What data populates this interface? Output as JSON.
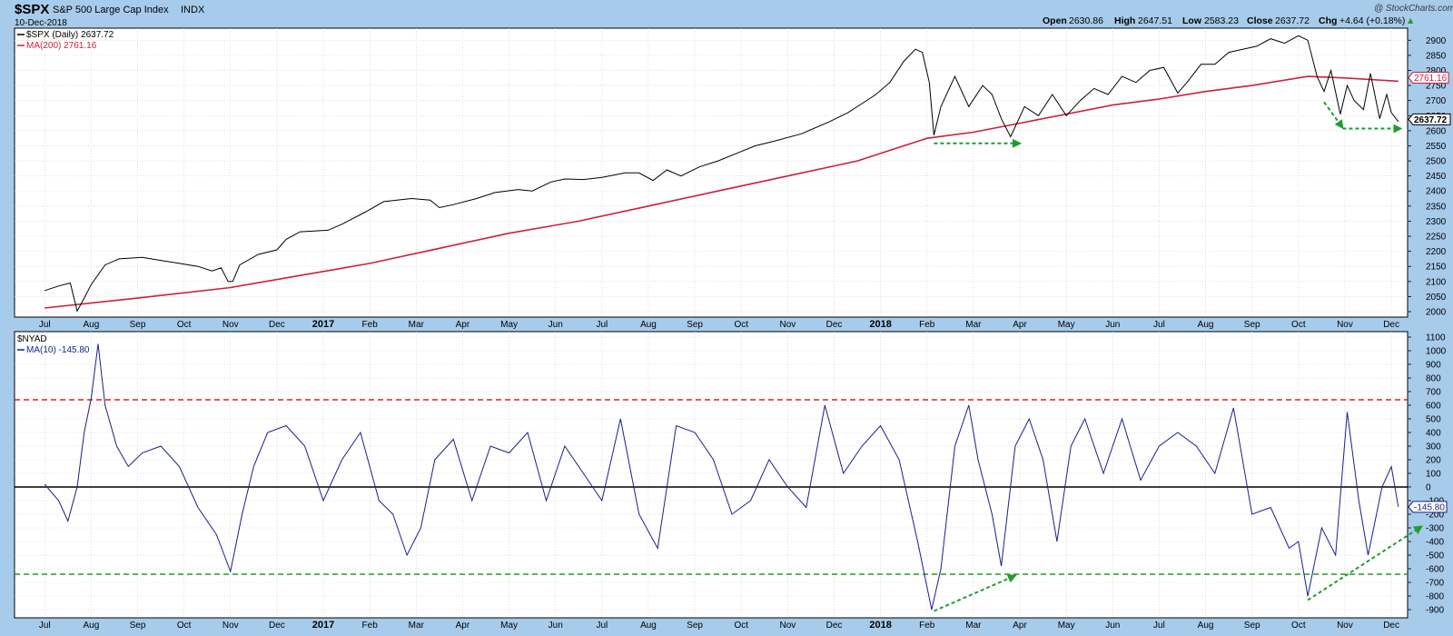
{
  "header": {
    "symbol": "$SPX",
    "name": "S&P 500 Large Cap Index",
    "exchange": "INDX",
    "date": "10-Dec-2018",
    "copyright": "@ StockCharts.com",
    "quote": {
      "open_label": "Open",
      "open": "2630.86",
      "high_label": "High",
      "high": "2647.51",
      "low_label": "Low",
      "low": "2583.23",
      "close_label": "Close",
      "close": "2637.72",
      "chg_label": "Chg",
      "chg": "+4.64 (+0.18%)",
      "chg_arrow": "▲"
    }
  },
  "top_panel": {
    "legend": [
      {
        "text": "$SPX (Daily) 2637.72",
        "color": "#000000"
      },
      {
        "text": "MA(200) 2761.16",
        "color": "#cc1f3f"
      }
    ],
    "price_tags": {
      "close": "2637.72",
      "ma": "2761.16"
    }
  },
  "bottom_panel": {
    "legend": [
      {
        "text": "$NYAD",
        "color": "#000000"
      },
      {
        "text": "MA(10) -145.80",
        "color": "#1a1f8c"
      }
    ],
    "price_tag": "-145.80"
  },
  "chart_data": [
    {
      "type": "line",
      "title": "$SPX S&P 500 Large Cap Index INDX",
      "x_labels": [
        "Jul",
        "Aug",
        "Sep",
        "Oct",
        "Nov",
        "Dec",
        "2017",
        "Feb",
        "Mar",
        "Apr",
        "May",
        "Jun",
        "Jul",
        "Aug",
        "Sep",
        "Oct",
        "Nov",
        "Dec",
        "2018",
        "Feb",
        "Mar",
        "Apr",
        "May",
        "Jun",
        "Jul",
        "Aug",
        "Sep",
        "Oct",
        "Nov",
        "Dec"
      ],
      "y_ticks": [
        2000,
        2050,
        2100,
        2150,
        2200,
        2250,
        2300,
        2350,
        2400,
        2450,
        2500,
        2550,
        2600,
        2650,
        2700,
        2750,
        2800,
        2850,
        2900
      ],
      "ylim": [
        1982,
        2940
      ],
      "grid": true,
      "series": [
        {
          "name": "$SPX (Daily)",
          "color": "#000000",
          "points": [
            [
              0,
              2070
            ],
            [
              0.3,
              2085
            ],
            [
              0.55,
              2095
            ],
            [
              0.7,
              2002
            ],
            [
              0.85,
              2045
            ],
            [
              1,
              2090
            ],
            [
              1.3,
              2155
            ],
            [
              1.6,
              2175
            ],
            [
              2.1,
              2180
            ],
            [
              2.5,
              2170
            ],
            [
              2.9,
              2160
            ],
            [
              3.3,
              2150
            ],
            [
              3.6,
              2135
            ],
            [
              3.8,
              2145
            ],
            [
              3.95,
              2100
            ],
            [
              4.05,
              2100
            ],
            [
              4.2,
              2155
            ],
            [
              4.6,
              2190
            ],
            [
              5,
              2205
            ],
            [
              5.2,
              2240
            ],
            [
              5.5,
              2265
            ],
            [
              6.1,
              2270
            ],
            [
              6.4,
              2290
            ],
            [
              6.9,
              2330
            ],
            [
              7.3,
              2365
            ],
            [
              7.9,
              2375
            ],
            [
              8.3,
              2370
            ],
            [
              8.5,
              2345
            ],
            [
              8.8,
              2355
            ],
            [
              9.3,
              2375
            ],
            [
              9.7,
              2395
            ],
            [
              10.2,
              2405
            ],
            [
              10.5,
              2400
            ],
            [
              10.9,
              2430
            ],
            [
              11.2,
              2440
            ],
            [
              11.6,
              2438
            ],
            [
              12,
              2445
            ],
            [
              12.5,
              2460
            ],
            [
              12.8,
              2460
            ],
            [
              13.1,
              2435
            ],
            [
              13.4,
              2470
            ],
            [
              13.7,
              2450
            ],
            [
              14.1,
              2480
            ],
            [
              14.5,
              2500
            ],
            [
              14.9,
              2525
            ],
            [
              15.3,
              2550
            ],
            [
              15.7,
              2565
            ],
            [
              16.3,
              2590
            ],
            [
              16.9,
              2630
            ],
            [
              17.3,
              2660
            ],
            [
              17.6,
              2690
            ],
            [
              17.9,
              2720
            ],
            [
              18.2,
              2760
            ],
            [
              18.5,
              2830
            ],
            [
              18.75,
              2870
            ],
            [
              18.9,
              2860
            ],
            [
              19.05,
              2760
            ],
            [
              19.15,
              2585
            ],
            [
              19.3,
              2680
            ],
            [
              19.6,
              2780
            ],
            [
              19.9,
              2680
            ],
            [
              20.2,
              2750
            ],
            [
              20.4,
              2720
            ],
            [
              20.6,
              2640
            ],
            [
              20.8,
              2580
            ],
            [
              21.1,
              2680
            ],
            [
              21.4,
              2650
            ],
            [
              21.7,
              2720
            ],
            [
              22,
              2650
            ],
            [
              22.3,
              2700
            ],
            [
              22.6,
              2740
            ],
            [
              22.9,
              2720
            ],
            [
              23.2,
              2780
            ],
            [
              23.5,
              2760
            ],
            [
              23.8,
              2800
            ],
            [
              24.1,
              2810
            ],
            [
              24.4,
              2725
            ],
            [
              24.6,
              2760
            ],
            [
              24.9,
              2820
            ],
            [
              25.2,
              2820
            ],
            [
              25.5,
              2860
            ],
            [
              25.8,
              2870
            ],
            [
              26.1,
              2880
            ],
            [
              26.4,
              2905
            ],
            [
              26.7,
              2890
            ],
            [
              27,
              2915
            ],
            [
              27.2,
              2900
            ],
            [
              27.4,
              2780
            ],
            [
              27.55,
              2730
            ],
            [
              27.7,
              2800
            ],
            [
              27.9,
              2655
            ],
            [
              28.05,
              2750
            ],
            [
              28.2,
              2700
            ],
            [
              28.4,
              2670
            ],
            [
              28.55,
              2790
            ],
            [
              28.75,
              2640
            ],
            [
              28.9,
              2720
            ],
            [
              29,
              2660
            ],
            [
              29.15,
              2630
            ]
          ]
        },
        {
          "name": "MA(200)",
          "color": "#cc1f3f",
          "points": [
            [
              0,
              2012
            ],
            [
              2,
              2045
            ],
            [
              4,
              2080
            ],
            [
              5.5,
              2120
            ],
            [
              7,
              2160
            ],
            [
              8.5,
              2210
            ],
            [
              10,
              2260
            ],
            [
              11.5,
              2300
            ],
            [
              13,
              2350
            ],
            [
              14.5,
              2400
            ],
            [
              16,
              2450
            ],
            [
              17.5,
              2500
            ],
            [
              18.5,
              2550
            ],
            [
              19,
              2575
            ],
            [
              20,
              2595
            ],
            [
              21,
              2625
            ],
            [
              22,
              2655
            ],
            [
              23,
              2685
            ],
            [
              24,
              2705
            ],
            [
              25,
              2730
            ],
            [
              26,
              2750
            ],
            [
              27.2,
              2780
            ],
            [
              28,
              2775
            ],
            [
              29.15,
              2764
            ]
          ]
        }
      ]
    },
    {
      "type": "line",
      "title": "$NYAD",
      "x_labels": [
        "Jul",
        "Aug",
        "Sep",
        "Oct",
        "Nov",
        "Dec",
        "2017",
        "Feb",
        "Mar",
        "Apr",
        "May",
        "Jun",
        "Jul",
        "Aug",
        "Sep",
        "Oct",
        "Nov",
        "Dec",
        "2018",
        "Feb",
        "Mar",
        "Apr",
        "May",
        "Jun",
        "Jul",
        "Aug",
        "Sep",
        "Oct",
        "Nov",
        "Dec"
      ],
      "y_ticks": [
        -900,
        -800,
        -700,
        -600,
        -500,
        -400,
        -300,
        -200,
        -100,
        0,
        100,
        200,
        300,
        400,
        500,
        600,
        700,
        800,
        900,
        1000,
        1100
      ],
      "ylim": [
        -960,
        1140
      ],
      "grid": true,
      "series": [
        {
          "name": "MA(10)",
          "color": "#1a1f8c",
          "points": [
            [
              0,
              20
            ],
            [
              0.3,
              -100
            ],
            [
              0.5,
              -250
            ],
            [
              0.7,
              0
            ],
            [
              0.85,
              400
            ],
            [
              1,
              650
            ],
            [
              1.15,
              1050
            ],
            [
              1.3,
              600
            ],
            [
              1.55,
              300
            ],
            [
              1.8,
              150
            ],
            [
              2.1,
              250
            ],
            [
              2.5,
              300
            ],
            [
              2.9,
              150
            ],
            [
              3.3,
              -150
            ],
            [
              3.7,
              -350
            ],
            [
              4.0,
              -620
            ],
            [
              4.25,
              -200
            ],
            [
              4.5,
              150
            ],
            [
              4.8,
              400
            ],
            [
              5.2,
              450
            ],
            [
              5.6,
              300
            ],
            [
              6.0,
              -100
            ],
            [
              6.4,
              200
            ],
            [
              6.8,
              400
            ],
            [
              7.2,
              -100
            ],
            [
              7.5,
              -200
            ],
            [
              7.8,
              -500
            ],
            [
              8.1,
              -300
            ],
            [
              8.4,
              200
            ],
            [
              8.8,
              350
            ],
            [
              9.2,
              -100
            ],
            [
              9.6,
              300
            ],
            [
              10.0,
              250
            ],
            [
              10.4,
              400
            ],
            [
              10.8,
              -100
            ],
            [
              11.2,
              300
            ],
            [
              11.6,
              100
            ],
            [
              12.0,
              -100
            ],
            [
              12.4,
              500
            ],
            [
              12.8,
              -200
            ],
            [
              13.2,
              -450
            ],
            [
              13.6,
              450
            ],
            [
              14.0,
              400
            ],
            [
              14.4,
              200
            ],
            [
              14.8,
              -200
            ],
            [
              15.2,
              -100
            ],
            [
              15.6,
              200
            ],
            [
              16.0,
              0
            ],
            [
              16.4,
              -150
            ],
            [
              16.8,
              600
            ],
            [
              17.2,
              100
            ],
            [
              17.6,
              300
            ],
            [
              18.0,
              450
            ],
            [
              18.4,
              200
            ],
            [
              18.8,
              -400
            ],
            [
              19.1,
              -900
            ],
            [
              19.3,
              -600
            ],
            [
              19.6,
              300
            ],
            [
              19.9,
              600
            ],
            [
              20.1,
              200
            ],
            [
              20.4,
              -200
            ],
            [
              20.6,
              -580
            ],
            [
              20.9,
              300
            ],
            [
              21.2,
              500
            ],
            [
              21.5,
              200
            ],
            [
              21.8,
              -400
            ],
            [
              22.1,
              300
            ],
            [
              22.4,
              500
            ],
            [
              22.8,
              100
            ],
            [
              23.2,
              500
            ],
            [
              23.6,
              50
            ],
            [
              24.0,
              300
            ],
            [
              24.4,
              400
            ],
            [
              24.8,
              300
            ],
            [
              25.2,
              100
            ],
            [
              25.6,
              580
            ],
            [
              26.0,
              -200
            ],
            [
              26.4,
              -150
            ],
            [
              26.8,
              -450
            ],
            [
              27.0,
              -400
            ],
            [
              27.2,
              -800
            ],
            [
              27.5,
              -300
            ],
            [
              27.8,
              -500
            ],
            [
              28.05,
              550
            ],
            [
              28.3,
              -100
            ],
            [
              28.5,
              -500
            ],
            [
              28.8,
              0
            ],
            [
              29.0,
              150
            ],
            [
              29.15,
              -145
            ]
          ]
        }
      ],
      "reference_lines": [
        {
          "value": 640,
          "color": "#dd1e1e",
          "style": "dashed"
        },
        {
          "value": 0,
          "color": "#000000",
          "style": "solid"
        },
        {
          "value": -640,
          "color": "#1e9e1e",
          "style": "dashed"
        }
      ]
    }
  ],
  "annotations": {
    "arrow_color": "#1e9e2e",
    "top_arrows": [
      {
        "from": [
          19.15,
          2558
        ],
        "to": [
          21.0,
          2558
        ]
      },
      {
        "from": [
          27.55,
          2695
        ],
        "to": [
          27.95,
          2610
        ]
      },
      {
        "from": [
          27.95,
          2607
        ],
        "to": [
          29.2,
          2607
        ]
      }
    ],
    "bottom_arrows": [
      {
        "from": [
          19.15,
          -910
        ],
        "to": [
          20.9,
          -650
        ]
      },
      {
        "from": [
          27.2,
          -830
        ],
        "to": [
          29.65,
          -290
        ]
      }
    ]
  }
}
